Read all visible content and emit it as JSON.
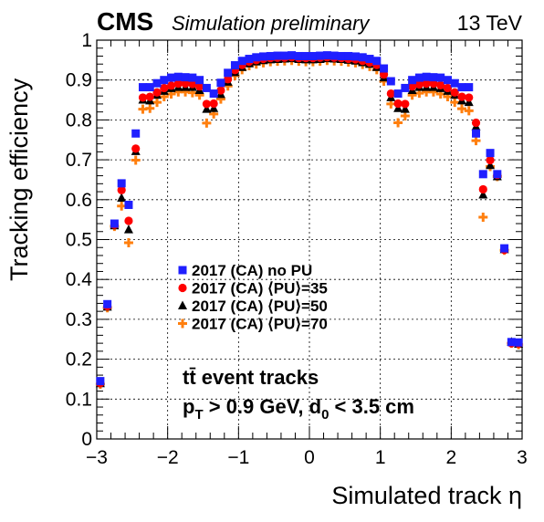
{
  "header": {
    "experiment": "CMS",
    "status": "Simulation preliminary",
    "energy": "13 TeV"
  },
  "annotation": {
    "line1": "tt̄ event tracks",
    "line2_prefix": "p",
    "line2_pt_sub": "T",
    "line2_mid": " > 0.9 GeV,  d",
    "line2_d0_sub": "0",
    "line2_suffix": " < 3.5 cm"
  },
  "chart_data": {
    "type": "scatter",
    "xlabel": "Simulated track η",
    "ylabel": "Tracking efficiency",
    "xlim": [
      -3,
      3
    ],
    "ylim": [
      0,
      1
    ],
    "xticks": [
      "−3",
      "−2",
      "−1",
      "0",
      "1",
      "2",
      "3"
    ],
    "yticks": [
      "0",
      "0.1",
      "0.2",
      "0.3",
      "0.4",
      "0.5",
      "0.6",
      "0.7",
      "0.8",
      "0.9",
      "1"
    ],
    "grid": true,
    "legend_position": "middle-left",
    "x": [
      -2.95,
      -2.85,
      -2.75,
      -2.65,
      -2.55,
      -2.45,
      -2.35,
      -2.25,
      -2.15,
      -2.05,
      -1.95,
      -1.85,
      -1.75,
      -1.65,
      -1.55,
      -1.45,
      -1.35,
      -1.25,
      -1.15,
      -1.05,
      -0.95,
      -0.85,
      -0.75,
      -0.65,
      -0.55,
      -0.45,
      -0.35,
      -0.25,
      -0.15,
      -0.05,
      0.05,
      0.15,
      0.25,
      0.35,
      0.45,
      0.55,
      0.65,
      0.75,
      0.85,
      0.95,
      1.05,
      1.15,
      1.25,
      1.35,
      1.45,
      1.55,
      1.65,
      1.75,
      1.85,
      1.95,
      2.05,
      2.15,
      2.25,
      2.35,
      2.45,
      2.55,
      2.65,
      2.75,
      2.85,
      2.95
    ],
    "series": [
      {
        "name": "2017 (CA) no PU",
        "color": "#1f1fff",
        "marker": "square",
        "values": [
          0.145,
          0.338,
          0.54,
          0.641,
          0.587,
          0.766,
          0.882,
          0.882,
          0.892,
          0.9,
          0.906,
          0.908,
          0.907,
          0.906,
          0.9,
          0.88,
          0.866,
          0.893,
          0.918,
          0.937,
          0.948,
          0.953,
          0.957,
          0.959,
          0.96,
          0.961,
          0.961,
          0.962,
          0.96,
          0.96,
          0.96,
          0.961,
          0.962,
          0.961,
          0.96,
          0.96,
          0.959,
          0.957,
          0.953,
          0.948,
          0.929,
          0.897,
          0.866,
          0.88,
          0.9,
          0.906,
          0.908,
          0.907,
          0.906,
          0.9,
          0.892,
          0.882,
          0.882,
          0.766,
          0.664,
          0.717,
          0.664,
          0.478,
          0.243,
          0.242
        ]
      },
      {
        "name": "2017 (CA) ⟨PU⟩=35",
        "color": "#ff0000",
        "marker": "circle",
        "values": [
          0.14,
          0.333,
          0.537,
          0.624,
          0.547,
          0.728,
          0.856,
          0.858,
          0.869,
          0.88,
          0.886,
          0.891,
          0.891,
          0.89,
          0.884,
          0.84,
          0.841,
          0.874,
          0.902,
          0.925,
          0.938,
          0.946,
          0.95,
          0.953,
          0.955,
          0.956,
          0.956,
          0.957,
          0.955,
          0.955,
          0.955,
          0.956,
          0.957,
          0.956,
          0.955,
          0.953,
          0.952,
          0.948,
          0.944,
          0.938,
          0.914,
          0.866,
          0.841,
          0.84,
          0.884,
          0.889,
          0.891,
          0.891,
          0.887,
          0.88,
          0.869,
          0.858,
          0.856,
          0.793,
          0.626,
          0.699,
          0.662,
          0.474,
          0.24,
          0.239
        ]
      },
      {
        "name": "2017 (CA) ⟨PU⟩=50",
        "color": "#000000",
        "marker": "triangle",
        "values": [
          0.139,
          0.331,
          0.535,
          0.604,
          0.525,
          0.721,
          0.85,
          0.848,
          0.862,
          0.872,
          0.879,
          0.882,
          0.882,
          0.882,
          0.874,
          0.827,
          0.829,
          0.864,
          0.895,
          0.919,
          0.932,
          0.941,
          0.946,
          0.949,
          0.951,
          0.952,
          0.953,
          0.954,
          0.952,
          0.951,
          0.951,
          0.952,
          0.954,
          0.953,
          0.952,
          0.95,
          0.948,
          0.944,
          0.94,
          0.932,
          0.906,
          0.856,
          0.829,
          0.827,
          0.874,
          0.882,
          0.882,
          0.882,
          0.879,
          0.872,
          0.862,
          0.848,
          0.844,
          0.783,
          0.612,
          0.686,
          0.658,
          0.475,
          0.243,
          0.238
        ]
      },
      {
        "name": "2017 (CA) ⟨PU⟩=70",
        "color": "#ff7f0e",
        "marker": "cross",
        "values": [
          0.137,
          0.329,
          0.533,
          0.584,
          0.492,
          0.699,
          0.827,
          0.829,
          0.844,
          0.858,
          0.865,
          0.87,
          0.87,
          0.868,
          0.862,
          0.792,
          0.815,
          0.852,
          0.885,
          0.911,
          0.926,
          0.936,
          0.94,
          0.943,
          0.946,
          0.947,
          0.948,
          0.949,
          0.947,
          0.946,
          0.946,
          0.947,
          0.949,
          0.948,
          0.947,
          0.945,
          0.943,
          0.939,
          0.934,
          0.926,
          0.897,
          0.84,
          0.793,
          0.81,
          0.862,
          0.867,
          0.87,
          0.87,
          0.865,
          0.858,
          0.844,
          0.828,
          0.823,
          0.748,
          0.556,
          0.683,
          0.658,
          0.473,
          0.24,
          0.236
        ]
      }
    ]
  }
}
